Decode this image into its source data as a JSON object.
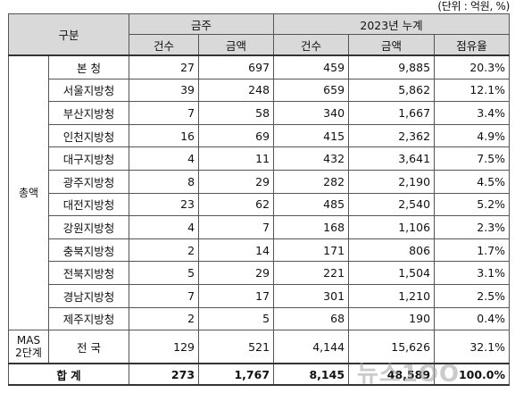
{
  "unit_note": "(단위 : 억원, %)",
  "header": {
    "category": "구분",
    "group_month": "금주",
    "group_year": "2023년 누계",
    "count": "건수",
    "amount": "금액",
    "share": "점유율"
  },
  "sections": {
    "total_label": "총액",
    "mas_label_line1": "MAS",
    "mas_label_line2": "2단계"
  },
  "rows": [
    {
      "name": "본 청",
      "w_count": "27",
      "w_amount": "697",
      "y_count": "459",
      "y_amount": "9,885",
      "share": "20.3%"
    },
    {
      "name": "서울지방청",
      "w_count": "39",
      "w_amount": "248",
      "y_count": "659",
      "y_amount": "5,862",
      "share": "12.1%"
    },
    {
      "name": "부산지방청",
      "w_count": "7",
      "w_amount": "58",
      "y_count": "340",
      "y_amount": "1,667",
      "share": "3.4%"
    },
    {
      "name": "인천지방청",
      "w_count": "16",
      "w_amount": "69",
      "y_count": "415",
      "y_amount": "2,362",
      "share": "4.9%"
    },
    {
      "name": "대구지방청",
      "w_count": "4",
      "w_amount": "11",
      "y_count": "432",
      "y_amount": "3,641",
      "share": "7.5%"
    },
    {
      "name": "광주지방청",
      "w_count": "8",
      "w_amount": "29",
      "y_count": "282",
      "y_amount": "2,190",
      "share": "4.5%"
    },
    {
      "name": "대전지방청",
      "w_count": "23",
      "w_amount": "62",
      "y_count": "485",
      "y_amount": "2,540",
      "share": "5.2%"
    },
    {
      "name": "강원지방청",
      "w_count": "4",
      "w_amount": "7",
      "y_count": "168",
      "y_amount": "1,106",
      "share": "2.3%"
    },
    {
      "name": "충북지방청",
      "w_count": "2",
      "w_amount": "14",
      "y_count": "171",
      "y_amount": "806",
      "share": "1.7%"
    },
    {
      "name": "전북지방청",
      "w_count": "5",
      "w_amount": "29",
      "y_count": "221",
      "y_amount": "1,504",
      "share": "3.1%"
    },
    {
      "name": "경남지방청",
      "w_count": "7",
      "w_amount": "17",
      "y_count": "301",
      "y_amount": "1,210",
      "share": "2.5%"
    },
    {
      "name": "제주지방청",
      "w_count": "2",
      "w_amount": "5",
      "y_count": "68",
      "y_amount": "190",
      "share": "0.4%"
    }
  ],
  "mas_row": {
    "name": "전 국",
    "w_count": "129",
    "w_amount": "521",
    "y_count": "4,144",
    "y_amount": "15,626",
    "share": "32.1%"
  },
  "total_row": {
    "label": "합 계",
    "w_count": "273",
    "w_amount": "1,767",
    "y_count": "8,145",
    "y_amount": "48,589",
    "share": "100.0%"
  },
  "watermark": "뉴스1OO"
}
